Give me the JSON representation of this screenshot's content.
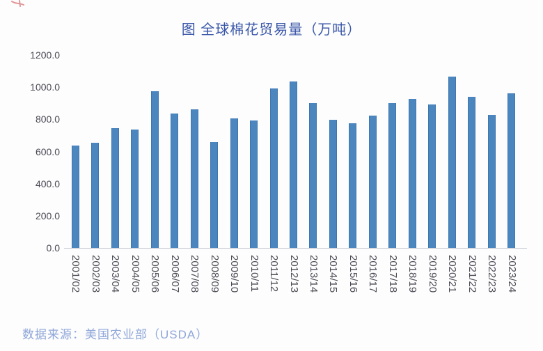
{
  "page_title": "图 全球棉花贸易量（万吨）",
  "marks": {
    "top_left_icon": "red-pen-mark"
  },
  "colors": {
    "bar": "#4c86bf",
    "bar_edge": "#3e77ae",
    "title_text": "#3a57a8",
    "axis_label_text": "#4b4b54",
    "axis_line": "#c8ccd4",
    "source_text": "#8fa6d8",
    "background": "#fdfdfe",
    "red_mark": "#cc4444"
  },
  "chart_data": {
    "type": "bar",
    "title": "图 全球棉花贸易量（万吨）",
    "categories": [
      "2001/02",
      "2002/03",
      "2003/04",
      "2004/05",
      "2005/06",
      "2006/07",
      "2007/08",
      "2008/09",
      "2009/10",
      "2010/11",
      "2011/12",
      "2012/13",
      "2013/14",
      "2014/15",
      "2015/16",
      "2016/17",
      "2017/18",
      "2018/19",
      "2019/20",
      "2020/21",
      "2021/22",
      "2022/23",
      "2023/24"
    ],
    "values": [
      635,
      655,
      745,
      737,
      975,
      836,
      860,
      658,
      807,
      794,
      990,
      1037,
      901,
      797,
      776,
      824,
      903,
      926,
      891,
      1066,
      941,
      826,
      963
    ],
    "xlabel": "",
    "ylabel": "",
    "ylim": [
      0,
      1200
    ],
    "ytick_step": 200,
    "ytick_labels": [
      "0.0",
      "200.0",
      "400.0",
      "600.0",
      "800.0",
      "1000.0",
      "1200.0"
    ],
    "grid": false,
    "legend": "none",
    "source": "数据来源：美国农业部（USDA）"
  }
}
